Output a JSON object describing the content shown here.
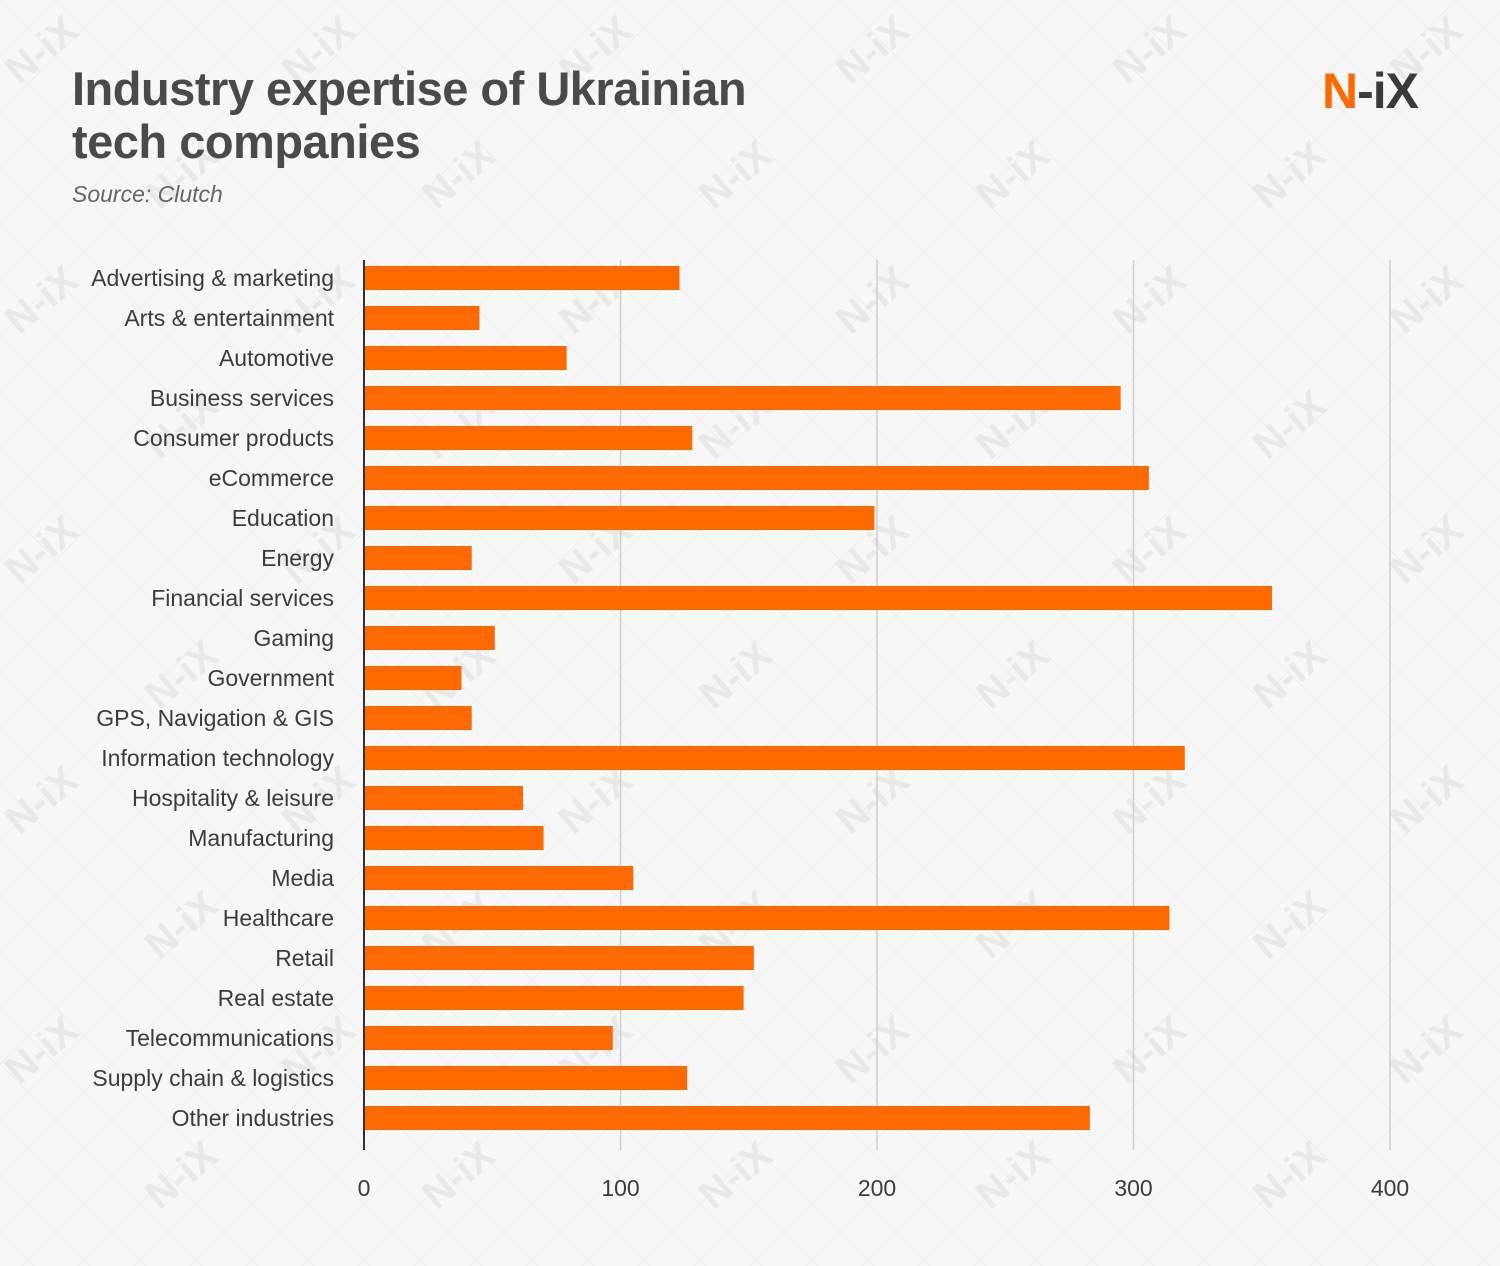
{
  "header": {
    "title_line1": "Industry expertise of Ukrainian",
    "title_line2": "tech companies",
    "source": "Source: Clutch"
  },
  "logo": {
    "n": "N",
    "rest": "-iX"
  },
  "watermark": "N-iX",
  "colors": {
    "bar": "#ff6a00",
    "grid": "#cfcfcf",
    "axis": "#333333",
    "text": "#3c3c3c"
  },
  "chart_data": {
    "type": "bar",
    "orientation": "horizontal",
    "categories": [
      "Advertising & marketing",
      "Arts & entertainment",
      "Automotive",
      "Business services",
      "Consumer products",
      "eCommerce",
      "Education",
      "Energy",
      "Financial services",
      "Gaming",
      "Government",
      "GPS, Navigation & GIS",
      "Information technology",
      "Hospitality & leisure",
      "Manufacturing",
      "Media",
      "Healthcare",
      "Retail",
      "Real estate",
      "Telecommunications",
      "Supply chain & logistics",
      "Other industries"
    ],
    "values": [
      123,
      45,
      79,
      295,
      128,
      306,
      199,
      42,
      354,
      51,
      38,
      42,
      320,
      62,
      70,
      105,
      314,
      152,
      148,
      97,
      126,
      283
    ],
    "xlim": [
      0,
      400
    ],
    "xticks": [
      "0",
      "100",
      "200",
      "300",
      "400"
    ],
    "grid": true,
    "legend": "none"
  }
}
